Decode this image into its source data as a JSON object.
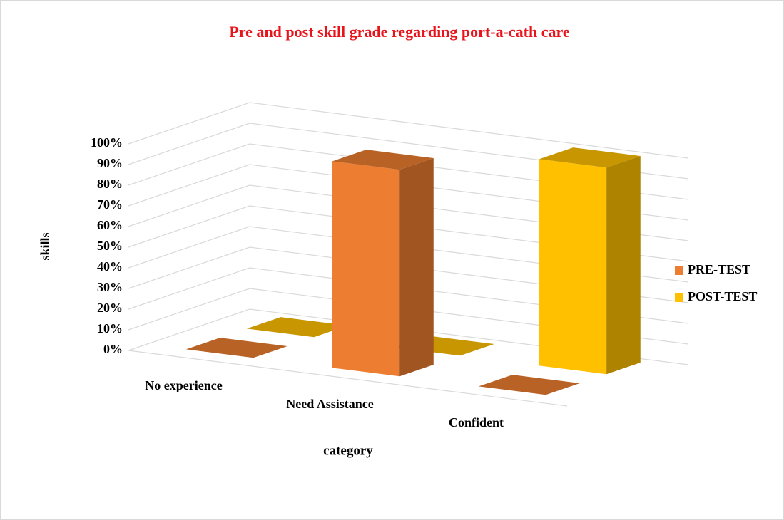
{
  "chart_data": {
    "type": "bar3d",
    "title": "Pre and post skill grade regarding port-a-cath care",
    "xlabel": "category",
    "ylabel": "skills",
    "categories": [
      "No experience",
      "Need Assistance",
      "Confident"
    ],
    "series": [
      {
        "name": "PRE-TEST",
        "color": "#ED7D31",
        "values": [
          0,
          100,
          0
        ]
      },
      {
        "name": "POST-TEST",
        "color": "#FFC000",
        "values": [
          0,
          0,
          100
        ]
      }
    ],
    "ylim": [
      0,
      100
    ],
    "yticks": [
      {
        "value": 0,
        "label": "0%"
      },
      {
        "value": 10,
        "label": "10%"
      },
      {
        "value": 20,
        "label": "20%"
      },
      {
        "value": 30,
        "label": "30%"
      },
      {
        "value": 40,
        "label": "40%"
      },
      {
        "value": 50,
        "label": "50%"
      },
      {
        "value": 60,
        "label": "60%"
      },
      {
        "value": 70,
        "label": "70%"
      },
      {
        "value": 80,
        "label": "80%"
      },
      {
        "value": 90,
        "label": "90%"
      },
      {
        "value": 100,
        "label": "100%"
      }
    ],
    "grid": true,
    "legend": "right"
  }
}
